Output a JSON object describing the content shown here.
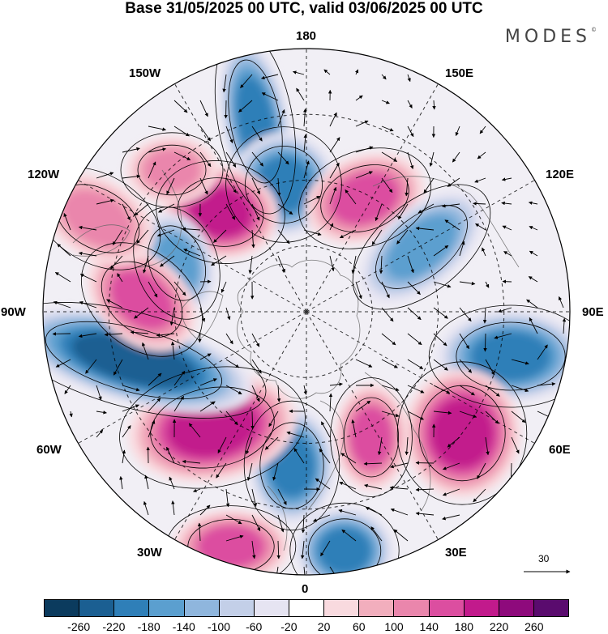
{
  "title": "Base 31/05/2025 00 UTC, valid 03/06/2025 00 UTC",
  "brand": "MODES",
  "brand_mark": "©",
  "longitude_labels": {
    "n180": "180",
    "e150": "150E",
    "e120": "120E",
    "e90": "90E",
    "e60": "60E",
    "e30": "30E",
    "n0": "0",
    "w30": "30W",
    "w60": "60W",
    "w90": "90W",
    "w120": "120W",
    "w150": "150W"
  },
  "reference_vector": "30",
  "colorbar": {
    "colors": [
      "#0b3b5e",
      "#1b5f92",
      "#2f7fb8",
      "#5b9fcf",
      "#8fb6dd",
      "#c3cfe8",
      "#e6e4f2",
      "#ffffff",
      "#f9dadf",
      "#f2aebd",
      "#ea86ac",
      "#dc4ea0",
      "#c21a8c",
      "#8e0a7c",
      "#5a0b6e"
    ],
    "ticks": [
      "-260",
      "-220",
      "-180",
      "-140",
      "-100",
      "-60",
      "-20",
      "20",
      "60",
      "100",
      "140",
      "180",
      "220",
      "260"
    ]
  },
  "map_data": {
    "projection": "north-polar-stereographic",
    "anomalies": [
      {
        "name": "negative-anomaly-pacific-north",
        "value": -180
      },
      {
        "name": "negative-anomaly-pacific-south",
        "value": -180
      },
      {
        "name": "positive-anomaly-alaska",
        "value": 200
      },
      {
        "name": "positive-anomaly-bering",
        "value": 100
      },
      {
        "name": "positive-anomaly-east-siberia",
        "value": 140
      },
      {
        "name": "negative-anomaly-siberia",
        "value": -140
      },
      {
        "name": "negative-anomaly-central-asia",
        "value": -180
      },
      {
        "name": "positive-anomaly-west-asia",
        "value": 200
      },
      {
        "name": "positive-anomaly-scandinavia",
        "value": 140
      },
      {
        "name": "negative-anomaly-greenland-east",
        "value": -180
      },
      {
        "name": "negative-anomaly-europe",
        "value": -180
      },
      {
        "name": "positive-anomaly-north-atlantic",
        "value": 200
      },
      {
        "name": "positive-anomaly-mid-atlantic",
        "value": 140
      },
      {
        "name": "negative-anomaly-hudson",
        "value": -220
      },
      {
        "name": "negative-anomaly-canada",
        "value": -140
      },
      {
        "name": "positive-anomaly-canada-west",
        "value": 140
      },
      {
        "name": "positive-anomaly-pacific-northwest",
        "value": 100
      }
    ]
  }
}
